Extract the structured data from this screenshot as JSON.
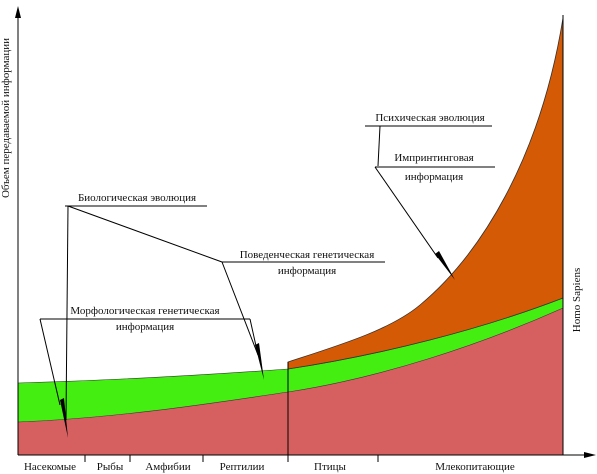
{
  "y_axis_label": "Объем передаваемой информации",
  "x_categories": [
    "Насекомые",
    "Рыбы",
    "Амфибии",
    "Рептилии",
    "Птицы",
    "Млекопитающие"
  ],
  "right_label": "Homo Sapiens",
  "annotations": {
    "biological": "Биологическая эволюция",
    "behavioral": [
      "Поведенческая генетическая",
      "информация"
    ],
    "morphological": [
      "Морфологическая генетическая",
      "информация"
    ],
    "psychic": "Психическая эволюция",
    "imprinting": [
      "Импринтинговая",
      "информация"
    ]
  }
}
